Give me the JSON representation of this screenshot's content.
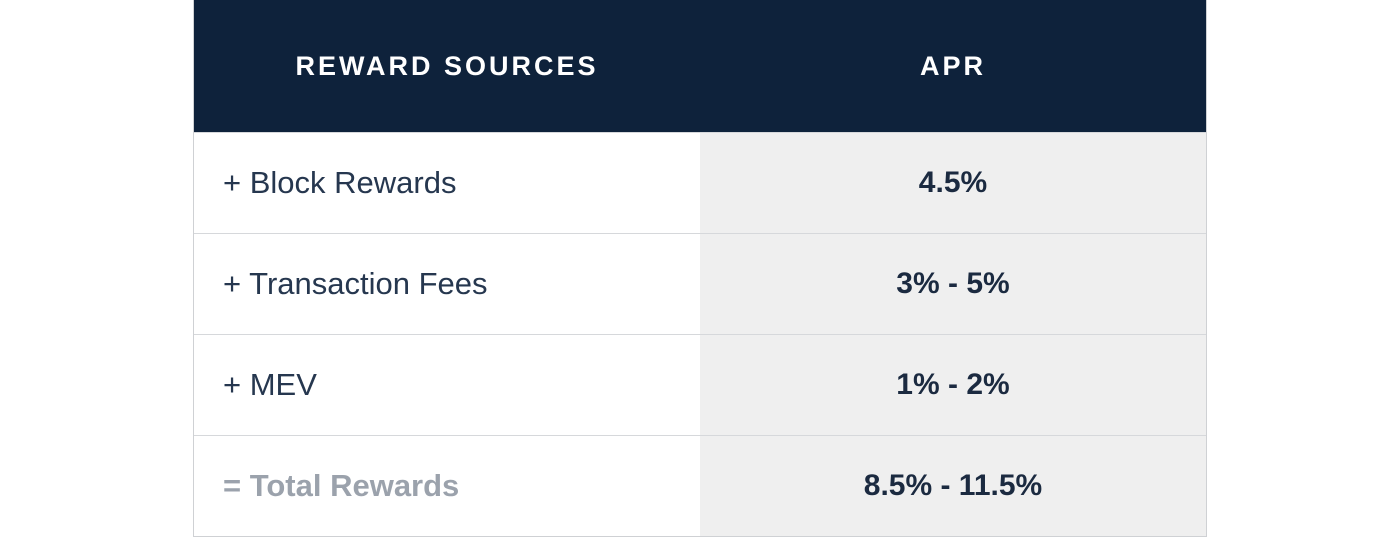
{
  "table": {
    "header": {
      "col1": "REWARD SOURCES",
      "col2": "APR"
    },
    "rows": [
      {
        "source": "+ Block Rewards",
        "apr": "4.5%"
      },
      {
        "source": "+ Transaction Fees",
        "apr": "3% - 5%"
      },
      {
        "source": "+ MEV",
        "apr": "1% - 2%"
      },
      {
        "source": "= Total Rewards",
        "apr": "8.5% - 11.5%"
      }
    ]
  },
  "colors": {
    "header_bg": "#0e223b",
    "apr_cell_bg": "#efefef",
    "total_label": "#9ba2ac"
  }
}
